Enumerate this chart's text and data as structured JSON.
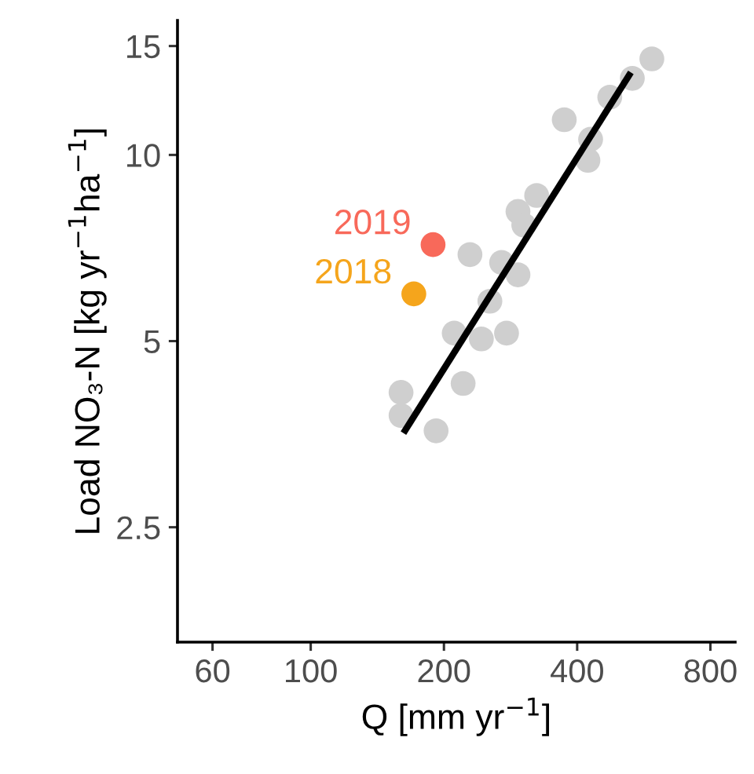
{
  "chart_data": {
    "type": "scatter",
    "xlabel": "Q [mm yr$^{−1}$]",
    "ylabel": "Load NO₃-N [kg yr$^{−1}$ha$^{−1}$]",
    "log": "xy",
    "xlim": [
      50,
      910
    ],
    "ylim": [
      1.63,
      16.5
    ],
    "xticks": [
      60,
      100,
      200,
      400,
      800
    ],
    "yticks": [
      2.5,
      5,
      10,
      15
    ],
    "grid": false,
    "legend": false,
    "marker": "circle",
    "series": [
      {
        "color": "#cfcfcf",
        "x": [
          590,
          533,
          474,
          374,
          429,
          423,
          324,
          294,
          303,
          229,
          270,
          294,
          254,
          211,
          243,
          277,
          221,
          160,
          160,
          192
        ],
        "values": [
          14.3,
          13.3,
          12.4,
          11.4,
          10.6,
          9.8,
          8.6,
          8.1,
          7.7,
          6.9,
          6.7,
          6.4,
          5.8,
          5.15,
          5.04,
          5.15,
          4.27,
          4.13,
          3.79,
          3.58
        ]
      },
      {
        "name": "2019",
        "color": "#f8695a",
        "x": [
          189
        ],
        "values": [
          7.16
        ]
      },
      {
        "name": "2018",
        "color": "#f5a51c",
        "x": [
          171
        ],
        "values": [
          5.96
        ]
      },
      {
        "type": "line",
        "color": "#000000",
        "line_style": "solid",
        "marker": "none",
        "x": [
          162,
          529
        ],
        "values": [
          3.55,
          13.6
        ]
      }
    ]
  }
}
